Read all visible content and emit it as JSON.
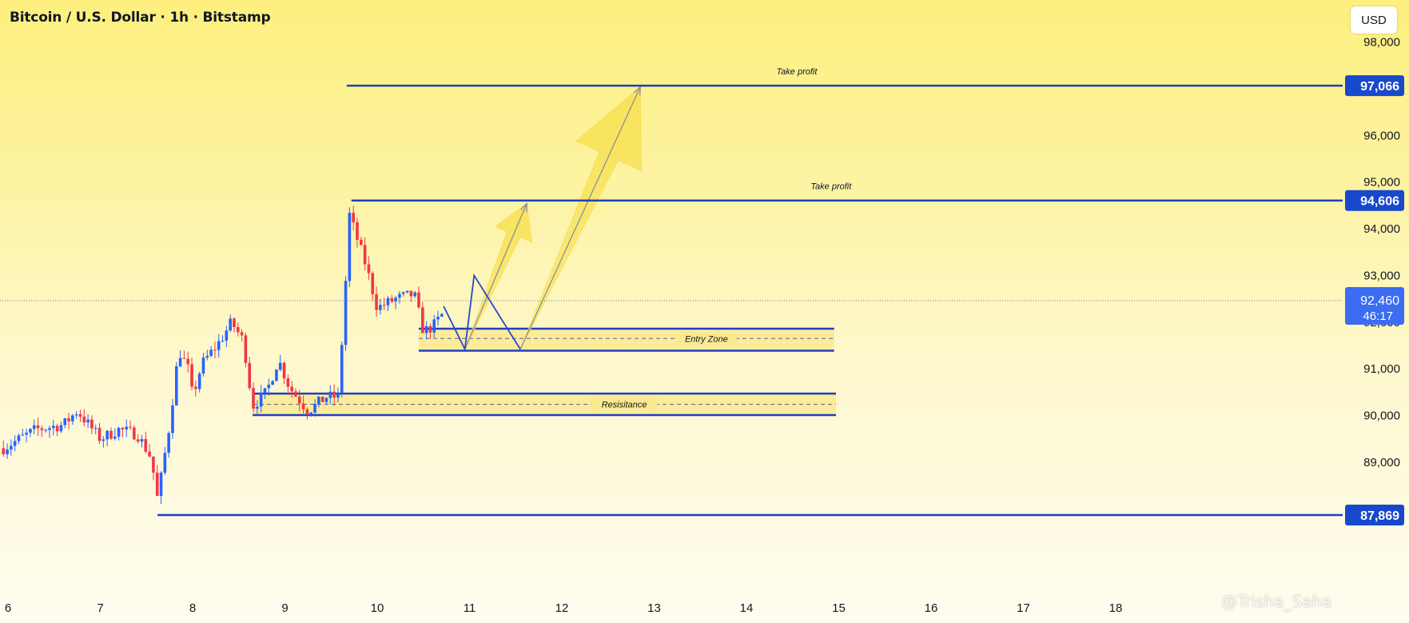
{
  "header": {
    "title": "Bitcoin / U.S. Dollar · 1h · Bitstamp",
    "currency_button": "USD"
  },
  "watermark": "@Trisha_Saha",
  "colors": {
    "up": "#2962ff",
    "down": "#f23645",
    "level": "#1e3fc4",
    "tag_bg": "#1848cc",
    "zone_fill": "#fbe98f",
    "arrow": "#f8e257",
    "current_tag": "#3b6cf2"
  },
  "chart_data": {
    "type": "candlestick",
    "title": "Bitcoin / U.S. Dollar · 1h · Bitstamp",
    "ylim": [
      87600,
      98700
    ],
    "y_ticks": [
      {
        "v": 89000,
        "label": "89,000"
      },
      {
        "v": 90000,
        "label": "90,000"
      },
      {
        "v": 91000,
        "label": "91,000"
      },
      {
        "v": 93000,
        "label": "93,000"
      },
      {
        "v": 94000,
        "label": "94,000"
      },
      {
        "v": 95000,
        "label": "95,000"
      },
      {
        "v": 96000,
        "label": "96,000"
      },
      {
        "v": 98000,
        "label": "98,000"
      }
    ],
    "x_ticks": [
      {
        "d": 6,
        "label": "6"
      },
      {
        "d": 7,
        "label": "7"
      },
      {
        "d": 8,
        "label": "8"
      },
      {
        "d": 9,
        "label": "9"
      },
      {
        "d": 10,
        "label": "10"
      },
      {
        "d": 11,
        "label": "11"
      },
      {
        "d": 12,
        "label": "12"
      },
      {
        "d": 13,
        "label": "13"
      },
      {
        "d": 14,
        "label": "14"
      },
      {
        "d": 15,
        "label": "15"
      },
      {
        "d": 16,
        "label": "16"
      },
      {
        "d": 17,
        "label": "17"
      },
      {
        "d": 18,
        "label": "18"
      }
    ],
    "key_points": [
      {
        "d": 5.95,
        "v": 89300
      },
      {
        "d": 6.3,
        "v": 89700
      },
      {
        "d": 6.6,
        "v": 89800
      },
      {
        "d": 6.75,
        "v": 90100
      },
      {
        "d": 7.0,
        "v": 89500
      },
      {
        "d": 7.2,
        "v": 89700
      },
      {
        "d": 7.4,
        "v": 89600
      },
      {
        "d": 7.55,
        "v": 89100
      },
      {
        "d": 7.62,
        "v": 88200
      },
      {
        "d": 7.75,
        "v": 89800
      },
      {
        "d": 7.85,
        "v": 91400
      },
      {
        "d": 7.95,
        "v": 91000
      },
      {
        "d": 8.0,
        "v": 90400
      },
      {
        "d": 8.1,
        "v": 91100
      },
      {
        "d": 8.3,
        "v": 91600
      },
      {
        "d": 8.42,
        "v": 92000
      },
      {
        "d": 8.55,
        "v": 91600
      },
      {
        "d": 8.65,
        "v": 90200
      },
      {
        "d": 8.8,
        "v": 90500
      },
      {
        "d": 8.93,
        "v": 91200
      },
      {
        "d": 9.05,
        "v": 90600
      },
      {
        "d": 9.25,
        "v": 90100
      },
      {
        "d": 9.45,
        "v": 90400
      },
      {
        "d": 9.58,
        "v": 90400
      },
      {
        "d": 9.65,
        "v": 92600
      },
      {
        "d": 9.7,
        "v": 94300
      },
      {
        "d": 9.78,
        "v": 93800
      },
      {
        "d": 9.88,
        "v": 93200
      },
      {
        "d": 10.0,
        "v": 92300
      },
      {
        "d": 10.2,
        "v": 92500
      },
      {
        "d": 10.4,
        "v": 92600
      },
      {
        "d": 10.5,
        "v": 91800
      },
      {
        "d": 10.6,
        "v": 91900
      },
      {
        "d": 10.72,
        "v": 92200
      }
    ],
    "current_price": {
      "value": 92460,
      "label": "92,460",
      "countdown": "46:17"
    },
    "levels": [
      {
        "name": "Take profit",
        "price": 97066,
        "label": "97,066",
        "x_from": 9.67
      },
      {
        "name": "Take profit",
        "price": 94606,
        "label": "94,606",
        "x_from": 9.72
      },
      {
        "name": "",
        "price": 87869,
        "label": "87,869",
        "x_from": 7.62
      }
    ],
    "zones": [
      {
        "name": "Entry Zone",
        "top": 91860,
        "bottom": 91390,
        "mid": 91650,
        "x_from": 10.45,
        "x_to": 14.95
      },
      {
        "name": "Resisitance",
        "top": 90470,
        "bottom": 90010,
        "mid": 90240,
        "x_from": 8.65,
        "x_to": 14.97
      }
    ],
    "zigzag": [
      {
        "d": 10.72,
        "v": 92340
      },
      {
        "d": 11.05,
        "v": 93000
      },
      {
        "d": 11.5,
        "v": 91420
      }
    ],
    "projection_path": [
      {
        "d": 10.95,
        "v": 91420
      },
      {
        "d": 11.62,
        "v": 94540
      }
    ],
    "projection_path_2": [
      {
        "d": 11.55,
        "v": 91420
      },
      {
        "d": 12.85,
        "v": 97040
      }
    ]
  }
}
